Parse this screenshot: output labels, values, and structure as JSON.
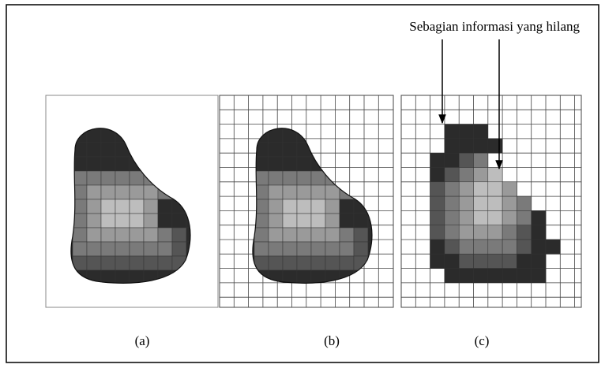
{
  "annotation": "Sebagian informasi yang hilang",
  "panels": [
    {
      "label": "(a)"
    },
    {
      "label": "(b)"
    },
    {
      "label": "(c)"
    }
  ]
}
